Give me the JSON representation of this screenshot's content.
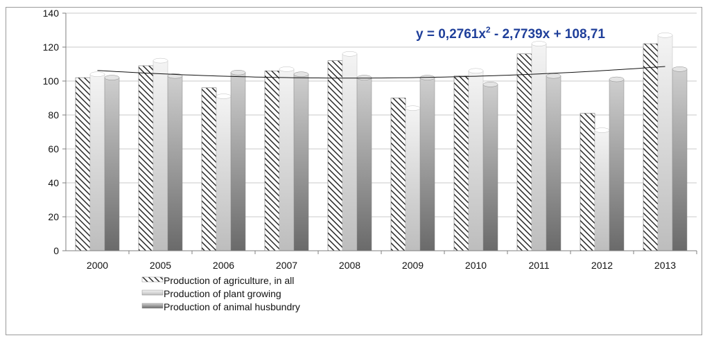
{
  "chart_data": {
    "type": "bar",
    "categories": [
      "2000",
      "2005",
      "2006",
      "2007",
      "2008",
      "2009",
      "2010",
      "2011",
      "2012",
      "2013"
    ],
    "series": [
      {
        "name": "Production of agriculture, in all",
        "values": [
          102,
          109,
          96,
          106,
          112,
          90,
          103,
          116,
          81,
          122
        ],
        "style": "hatched"
      },
      {
        "name": "Production of plant growing",
        "values": [
          104,
          112,
          91,
          107,
          116,
          84,
          106,
          122,
          71,
          127
        ],
        "style": "light-gradient"
      },
      {
        "name": "Production of animal husbundry",
        "values": [
          102,
          103,
          105,
          104,
          102,
          102,
          98,
          103,
          101,
          107
        ],
        "style": "gray-gradient"
      }
    ],
    "ylim": [
      0,
      140
    ],
    "yticks": [
      0,
      20,
      40,
      60,
      80,
      100,
      120,
      140
    ],
    "grid": true,
    "legend_position": "bottom-left",
    "trendline": {
      "type": "polynomial-2",
      "equation_base": "y = 0,2761x",
      "equation_sup": "2",
      "equation_rest": " - 2,7739x + 108,71",
      "coefficients": {
        "a": 0.2761,
        "b": -2.7739,
        "c": 108.71
      }
    },
    "colors": {
      "hatch": "#2a2a2a",
      "plant_light": "#f4f4f4",
      "plant_dark": "#bdbdbd",
      "animal_light": "#cfcfcf",
      "animal_dark": "#6a6a6a",
      "gridline": "#c8c8c8",
      "axis": "#7f7f7f",
      "equation": "#1f3f9a"
    }
  }
}
